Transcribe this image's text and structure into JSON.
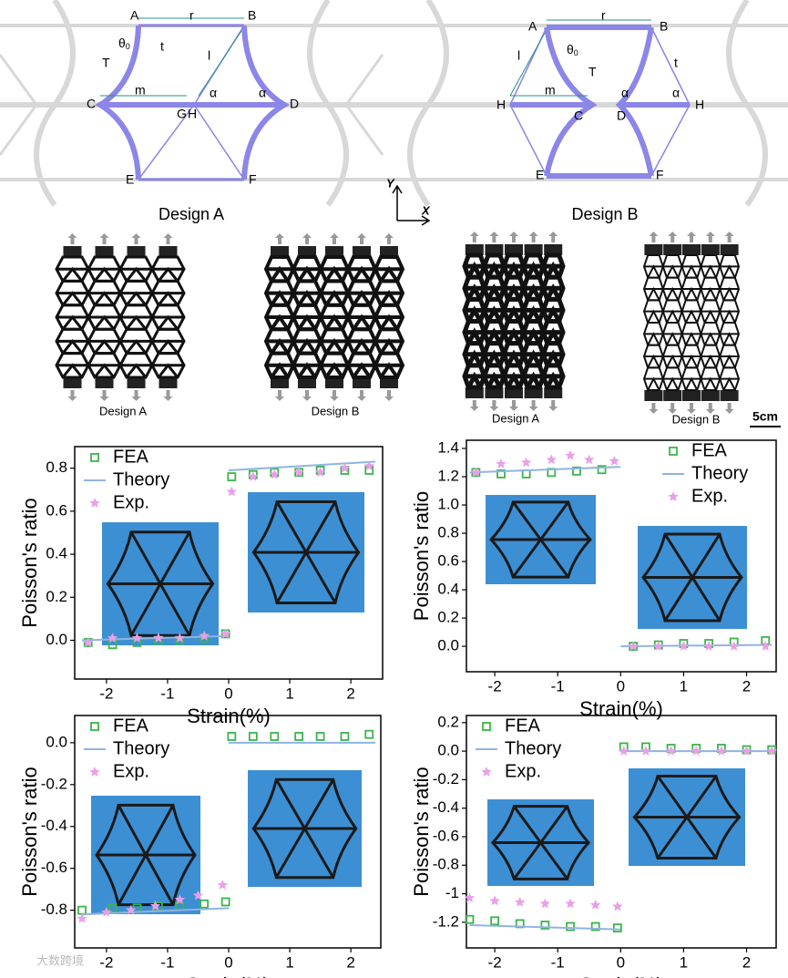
{
  "designs": {
    "a": {
      "title": "Design A",
      "A": "A",
      "B": "B",
      "C": "C",
      "D": "D",
      "E": "E",
      "F": "F",
      "G": "G",
      "H": "H",
      "r": "r",
      "theta": "θ",
      "theta_sub": "0",
      "t": "t",
      "T": "T",
      "l": "l",
      "m": "m",
      "alpha": "α"
    },
    "b": {
      "title": "Design B",
      "A": "A",
      "B": "B",
      "C": "C",
      "D": "D",
      "E": "E",
      "F": "F",
      "H": "H",
      "r": "r",
      "theta": "θ",
      "theta_sub": "0",
      "t": "t",
      "T": "T",
      "l": "l",
      "m": "m",
      "alpha": "α"
    },
    "axes": {
      "y": "Y",
      "x": "X"
    }
  },
  "photos": {
    "labels": [
      "Design A",
      "Design B",
      "Design A",
      "Design B"
    ],
    "scale": "5cm"
  },
  "watermark": "大数跨境",
  "chart_data": [
    {
      "type": "scatter",
      "xlabel": "Strain(%)",
      "ylabel": "Poisson's ratio",
      "legend": "upper left",
      "xlim": [
        -2.52,
        2.52
      ],
      "xticks": [
        -2,
        -1,
        0,
        1,
        2
      ],
      "ylim": [
        -0.18,
        0.9
      ],
      "yticks": [
        {
          "value": 0,
          "label": "0.0"
        },
        0.2,
        0.4,
        0.6,
        0.8
      ],
      "series": [
        {
          "name": "FEA",
          "color": "#3cb44b",
          "marker": "square",
          "x": [
            -2.3,
            -1.9,
            -1.5,
            -1.15,
            -0.8,
            -0.4,
            -0.05,
            0.05,
            0.4,
            0.75,
            1.15,
            1.5,
            1.9,
            2.3
          ],
          "values": [
            -0.01,
            -0.02,
            -0.01,
            0.0,
            0.0,
            0.01,
            0.03,
            0.76,
            0.77,
            0.78,
            0.78,
            0.79,
            0.79,
            0.79
          ]
        },
        {
          "name": "Theory",
          "color": "#8fb4e3",
          "marker": "line",
          "x": [
            -2.4,
            0,
            0,
            0,
            2.4
          ],
          "values": [
            0.0,
            0.02,
            null,
            0.79,
            0.83
          ]
        },
        {
          "name": "Exp.",
          "color": "#e8a0e8",
          "marker": "star",
          "x": [
            -2.3,
            -1.9,
            -1.5,
            -1.15,
            -0.8,
            -0.4,
            -0.05,
            0.05,
            0.4,
            0.75,
            1.15,
            1.5,
            1.9,
            2.3
          ],
          "values": [
            -0.01,
            0.01,
            0.01,
            0.01,
            0.01,
            0.02,
            0.03,
            0.69,
            0.76,
            0.77,
            0.78,
            0.78,
            0.8,
            0.81
          ]
        }
      ]
    },
    {
      "type": "scatter",
      "xlabel": "Strain(%)",
      "ylabel": "Poisson's ratio",
      "legend": "upper right",
      "xlim": [
        -2.45,
        2.47
      ],
      "xticks": [
        -2,
        -1,
        0,
        1,
        2
      ],
      "ylim": [
        -0.18,
        1.458
      ],
      "yticks": [
        {
          "value": 0,
          "label": "0.0"
        },
        0.2,
        0.4,
        0.6,
        0.8,
        {
          "value": 1,
          "label": "1.0"
        },
        1.2,
        1.4
      ],
      "series": [
        {
          "name": "FEA",
          "color": "#3cb44b",
          "marker": "square",
          "x": [
            -2.3,
            -1.9,
            -1.5,
            -1.1,
            -0.7,
            -0.3,
            0.2,
            0.6,
            1.0,
            1.4,
            1.8,
            2.3
          ],
          "values": [
            1.23,
            1.22,
            1.22,
            1.23,
            1.24,
            1.25,
            0.0,
            0.01,
            0.02,
            0.02,
            0.03,
            0.04
          ]
        },
        {
          "name": "Theory",
          "color": "#8fb4e3",
          "marker": "line",
          "x": [
            -2.4,
            0,
            0,
            0,
            2.4
          ],
          "values": [
            1.23,
            1.27,
            null,
            0.0,
            0.01
          ]
        },
        {
          "name": "Exp.",
          "color": "#e8a0e8",
          "marker": "star",
          "x": [
            -2.3,
            -1.9,
            -1.5,
            -1.1,
            -0.8,
            -0.5,
            -0.1,
            0.2,
            0.6,
            1.0,
            1.4,
            1.8,
            2.3
          ],
          "values": [
            1.23,
            1.29,
            1.3,
            1.32,
            1.35,
            1.32,
            1.31,
            0.0,
            0.0,
            0.0,
            0.0,
            0.0,
            0.0
          ]
        }
      ]
    },
    {
      "type": "scatter",
      "xlabel": "Strain(%)",
      "ylabel": "Poisson's ratio",
      "legend": "upper left",
      "xlim": [
        -2.52,
        2.49
      ],
      "xticks": [
        -2,
        -1,
        0,
        1,
        2
      ],
      "ylim": [
        -0.98,
        0.13
      ],
      "yticks": [
        -0.8,
        -0.6,
        -0.4,
        -0.2,
        {
          "value": 0,
          "label": "0.0"
        }
      ],
      "series": [
        {
          "name": "FEA",
          "color": "#3cb44b",
          "marker": "square",
          "x": [
            -2.4,
            -1.9,
            -1.5,
            -1.15,
            -0.8,
            -0.4,
            -0.05,
            0.05,
            0.4,
            0.75,
            1.15,
            1.5,
            1.9,
            2.3
          ],
          "values": [
            -0.8,
            -0.79,
            -0.79,
            -0.78,
            -0.78,
            -0.77,
            -0.76,
            0.03,
            0.03,
            0.03,
            0.03,
            0.03,
            0.03,
            0.04
          ]
        },
        {
          "name": "Theory",
          "color": "#8fb4e3",
          "marker": "line",
          "x": [
            -2.4,
            0,
            0,
            0,
            2.4
          ],
          "values": [
            -0.82,
            -0.79,
            null,
            0.0,
            0.0
          ]
        },
        {
          "name": "Exp.",
          "color": "#e8a0e8",
          "marker": "star",
          "x": [
            -2.4,
            -2.0,
            -1.6,
            -1.2,
            -0.8,
            -0.5,
            -0.1
          ],
          "values": [
            -0.84,
            -0.81,
            -0.8,
            -0.78,
            -0.75,
            -0.73,
            -0.68
          ]
        }
      ]
    },
    {
      "type": "scatter",
      "xlabel": "Strain(%)",
      "ylabel": "Poisson's ratio",
      "legend": "upper left",
      "xlim": [
        -2.45,
        2.47
      ],
      "xticks": [
        -2,
        -1,
        0,
        1,
        2
      ],
      "ylim": [
        -1.38,
        0.25
      ],
      "yticks": [
        -1.2,
        -1,
        -0.8,
        -0.6,
        -0.4,
        -0.2,
        {
          "value": 0,
          "label": "0.0"
        },
        0.2
      ],
      "series": [
        {
          "name": "FEA",
          "color": "#3cb44b",
          "marker": "square",
          "x": [
            -2.4,
            -2.0,
            -1.6,
            -1.2,
            -0.8,
            -0.4,
            -0.05,
            0.05,
            0.4,
            0.8,
            1.2,
            1.6,
            2.0,
            2.4
          ],
          "values": [
            -1.18,
            -1.19,
            -1.21,
            -1.22,
            -1.23,
            -1.23,
            -1.24,
            0.03,
            0.03,
            0.02,
            0.02,
            0.02,
            0.01,
            0.01
          ]
        },
        {
          "name": "Theory",
          "color": "#8fb4e3",
          "marker": "line",
          "x": [
            -2.4,
            0,
            0,
            0,
            2.4
          ],
          "values": [
            -1.22,
            -1.25,
            null,
            0.0,
            0.0
          ]
        },
        {
          "name": "Exp.",
          "color": "#e8a0e8",
          "marker": "star",
          "x": [
            -2.4,
            -2.0,
            -1.6,
            -1.2,
            -0.8,
            -0.4,
            -0.05,
            0.05,
            0.4,
            0.8,
            1.2,
            1.6,
            2.0,
            2.4
          ],
          "values": [
            -1.03,
            -1.05,
            -1.06,
            -1.07,
            -1.07,
            -1.08,
            -1.09,
            0.0,
            0.0,
            0.0,
            0.0,
            0.0,
            0.0,
            0.0
          ]
        }
      ]
    }
  ]
}
